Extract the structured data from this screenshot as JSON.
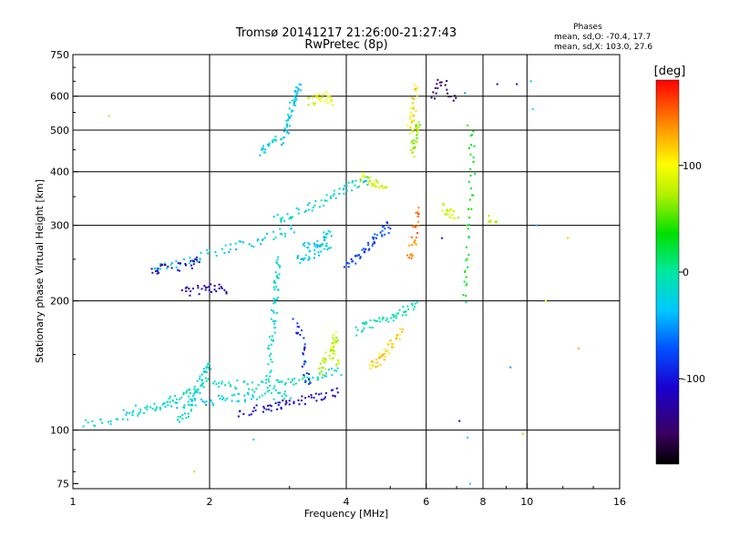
{
  "chart_data": {
    "type": "scatter",
    "title": "Tromsø 20141217 21:26:00-21:27:43",
    "subtitle": "RwPretec (8p)",
    "stats": {
      "heading": "Phases",
      "line_o": "mean, sd,O: -70.4, 17.7",
      "line_x": "mean, sd,X: 103.0, 27.6"
    },
    "xlabel": "Frequency [MHz]",
    "ylabel": "Stationary phase Virtual Height [km]",
    "x_scale": "log",
    "y_scale": "log",
    "xlim": [
      1,
      16
    ],
    "ylim": [
      73,
      750
    ],
    "x_ticks": [
      1,
      2,
      4,
      6,
      8,
      10,
      16
    ],
    "y_ticks": [
      75,
      100,
      200,
      300,
      400,
      500,
      600,
      750
    ],
    "x_gridlines": [
      2,
      4,
      6,
      8,
      10
    ],
    "y_gridlines": [
      100,
      200,
      300,
      400,
      500,
      600
    ],
    "colorbar": {
      "label": "[deg]",
      "ticks": [
        100,
        0,
        -100
      ],
      "range": [
        -180,
        180
      ],
      "colormap": "rainbow"
    },
    "traces": [
      {
        "points": [
          [
            1.05,
            103
          ],
          [
            1.2,
            105
          ],
          [
            1.4,
            110
          ],
          [
            1.6,
            115
          ],
          [
            1.75,
            120
          ],
          [
            1.85,
            125
          ],
          [
            2.0,
            130
          ],
          [
            2.2,
            128
          ],
          [
            2.5,
            127
          ],
          [
            2.8,
            128
          ],
          [
            3.0,
            130
          ],
          [
            3.3,
            132
          ],
          [
            3.6,
            135
          ],
          [
            3.9,
            138
          ]
        ],
        "phase": -10
      },
      {
        "points": [
          [
            1.3,
            112
          ],
          [
            1.5,
            113
          ],
          [
            1.7,
            114
          ],
          [
            1.9,
            116
          ],
          [
            2.1,
            118
          ],
          [
            2.3,
            119
          ],
          [
            2.5,
            120
          ],
          [
            2.8,
            121
          ],
          [
            3.0,
            120
          ]
        ],
        "phase": -25
      },
      {
        "points": [
          [
            2.3,
            110
          ],
          [
            2.6,
            112
          ],
          [
            2.8,
            114
          ],
          [
            3.0,
            116
          ],
          [
            3.3,
            118
          ],
          [
            3.6,
            121
          ],
          [
            3.9,
            123
          ]
        ],
        "phase": -110
      },
      {
        "points": [
          [
            1.7,
            105
          ],
          [
            1.8,
            110
          ],
          [
            1.85,
            118
          ],
          [
            1.9,
            128
          ],
          [
            1.95,
            138
          ],
          [
            2.0,
            142
          ]
        ],
        "phase": -15
      },
      {
        "points": [
          [
            2.7,
            130
          ],
          [
            2.72,
            150
          ],
          [
            2.75,
            170
          ],
          [
            2.78,
            190
          ],
          [
            2.8,
            210
          ],
          [
            2.82,
            230
          ],
          [
            2.85,
            250
          ]
        ],
        "phase": -15
      },
      {
        "points": [
          [
            1.5,
            240
          ],
          [
            1.7,
            245
          ],
          [
            1.9,
            255
          ],
          [
            2.2,
            265
          ],
          [
            2.5,
            275
          ],
          [
            2.8,
            285
          ],
          [
            3.1,
            295
          ]
        ],
        "phase": -25
      },
      {
        "points": [
          [
            1.5,
            235
          ],
          [
            1.6,
            238
          ],
          [
            1.8,
            243
          ],
          [
            1.9,
            248
          ]
        ],
        "phase": -110
      },
      {
        "points": [
          [
            1.75,
            210
          ],
          [
            1.9,
            212
          ],
          [
            2.05,
            215
          ],
          [
            2.2,
            212
          ]
        ],
        "phase": -125
      },
      {
        "points": [
          [
            2.8,
            310
          ],
          [
            3.0,
            315
          ],
          [
            3.3,
            330
          ],
          [
            3.6,
            345
          ],
          [
            3.9,
            360
          ],
          [
            4.2,
            375
          ],
          [
            4.5,
            385
          ]
        ],
        "phase": -20
      },
      {
        "points": [
          [
            3.2,
            265
          ],
          [
            3.4,
            270
          ],
          [
            3.6,
            280
          ],
          [
            3.7,
            290
          ]
        ],
        "phase": -30
      },
      {
        "points": [
          [
            2.9,
            470
          ],
          [
            2.95,
            500
          ],
          [
            3.0,
            540
          ],
          [
            3.05,
            580
          ],
          [
            3.1,
            610
          ],
          [
            3.15,
            640
          ]
        ],
        "phase": -30
      },
      {
        "points": [
          [
            2.6,
            440
          ],
          [
            2.7,
            460
          ],
          [
            2.8,
            480
          ]
        ],
        "phase": -25
      },
      {
        "points": [
          [
            3.1,
            250
          ],
          [
            3.3,
            255
          ],
          [
            3.5,
            262
          ],
          [
            3.7,
            268
          ]
        ],
        "phase": -25
      },
      {
        "points": [
          [
            4.0,
            245
          ],
          [
            4.2,
            250
          ],
          [
            4.4,
            262
          ],
          [
            4.6,
            275
          ],
          [
            4.8,
            290
          ],
          [
            5.0,
            300
          ]
        ],
        "phase": -80
      },
      {
        "points": [
          [
            5.5,
            250
          ],
          [
            5.6,
            270
          ],
          [
            5.7,
            300
          ],
          [
            5.75,
            330
          ]
        ],
        "phase": 140
      },
      {
        "points": [
          [
            4.2,
            170
          ],
          [
            4.5,
            175
          ],
          [
            4.8,
            180
          ],
          [
            5.1,
            185
          ],
          [
            5.4,
            190
          ],
          [
            5.7,
            195
          ]
        ],
        "phase": -10
      },
      {
        "points": [
          [
            3.5,
            135
          ],
          [
            3.6,
            145
          ],
          [
            3.7,
            155
          ],
          [
            3.8,
            165
          ],
          [
            3.7,
            150
          ],
          [
            3.9,
            140
          ]
        ],
        "phase": 80
      },
      {
        "points": [
          [
            4.5,
            140
          ],
          [
            4.7,
            145
          ],
          [
            4.9,
            152
          ],
          [
            5.1,
            160
          ],
          [
            5.3,
            170
          ]
        ],
        "phase": 115
      },
      {
        "points": [
          [
            3.3,
            580
          ],
          [
            3.45,
            590
          ],
          [
            3.6,
            600
          ],
          [
            3.75,
            580
          ]
        ],
        "phase": 90
      },
      {
        "points": [
          [
            5.5,
            500
          ],
          [
            5.6,
            540
          ],
          [
            5.65,
            580
          ],
          [
            5.7,
            640
          ]
        ],
        "phase": 110
      },
      {
        "points": [
          [
            5.6,
            440
          ],
          [
            5.65,
            470
          ],
          [
            5.7,
            500
          ],
          [
            5.75,
            520
          ]
        ],
        "phase": 70
      },
      {
        "points": [
          [
            4.3,
            390
          ],
          [
            4.5,
            380
          ],
          [
            4.7,
            375
          ],
          [
            4.9,
            370
          ]
        ],
        "phase": 85
      },
      {
        "points": [
          [
            6.5,
            330
          ],
          [
            6.8,
            320
          ],
          [
            7.0,
            315
          ]
        ],
        "phase": 80
      },
      {
        "points": [
          [
            7.3,
            200
          ],
          [
            7.4,
            250
          ],
          [
            7.5,
            320
          ],
          [
            7.6,
            420
          ],
          [
            7.5,
            520
          ]
        ],
        "phase": 30
      },
      {
        "points": [
          [
            8.3,
            310
          ],
          [
            8.5,
            305
          ]
        ],
        "phase": 70
      },
      {
        "points": [
          [
            3.1,
            180
          ],
          [
            3.2,
            160
          ],
          [
            3.25,
            140
          ],
          [
            3.3,
            125
          ]
        ],
        "phase": -90
      },
      {
        "points": [
          [
            6.2,
            600
          ],
          [
            6.5,
            650
          ],
          [
            7.0,
            580
          ]
        ],
        "phase": -150
      }
    ],
    "isolated_points": [
      {
        "f": 1.2,
        "h": 540,
        "phase": 70
      },
      {
        "f": 7.3,
        "h": 610,
        "phase": -50
      },
      {
        "f": 8.6,
        "h": 640,
        "phase": -130
      },
      {
        "f": 9.5,
        "h": 640,
        "phase": -120
      },
      {
        "f": 10.2,
        "h": 650,
        "phase": -15
      },
      {
        "f": 10.3,
        "h": 560,
        "phase": 0
      },
      {
        "f": 10.5,
        "h": 300,
        "phase": -40
      },
      {
        "f": 11.0,
        "h": 200,
        "phase": 100
      },
      {
        "f": 12.3,
        "h": 280,
        "phase": 120
      },
      {
        "f": 13.0,
        "h": 155,
        "phase": 130
      },
      {
        "f": 1.85,
        "h": 80,
        "phase": 120
      },
      {
        "f": 2.5,
        "h": 95,
        "phase": -30
      },
      {
        "f": 7.1,
        "h": 105,
        "phase": -120
      },
      {
        "f": 7.4,
        "h": 96,
        "phase": -30
      },
      {
        "f": 7.5,
        "h": 75,
        "phase": -25
      },
      {
        "f": 9.8,
        "h": 98,
        "phase": 70
      },
      {
        "f": 9.2,
        "h": 140,
        "phase": -50
      },
      {
        "f": 6.5,
        "h": 280,
        "phase": -100
      }
    ]
  }
}
